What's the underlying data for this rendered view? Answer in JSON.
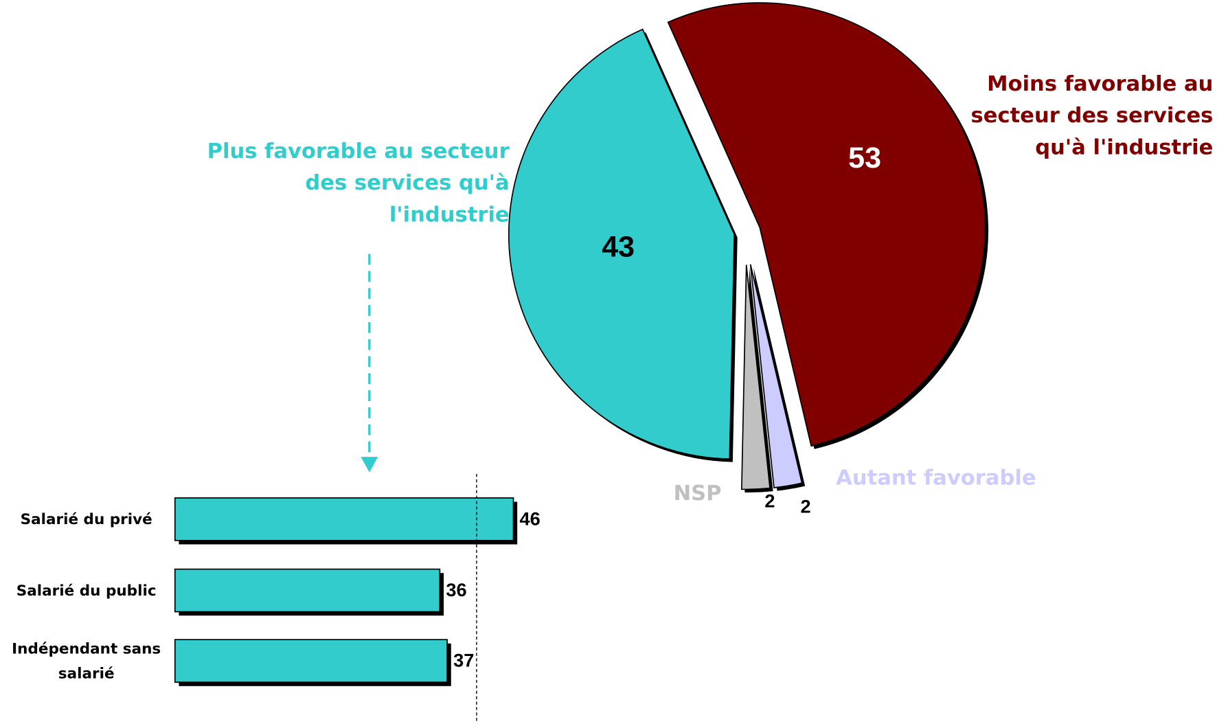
{
  "chart_data": [
    {
      "type": "pie",
      "categories": [
        "Moins favorable au secteur des services qu'à l'industrie",
        "Autant favorable",
        "NSP",
        "Plus favorable au secteur des services qu'à l'industrie"
      ],
      "values": [
        53,
        2,
        2,
        43
      ],
      "colors": [
        "#800000",
        "#ccccff",
        "#c0c0c0",
        "#33cccc"
      ],
      "label_colors": [
        "#800000",
        "#ccccff",
        "#c0c0c0",
        "#33cccc"
      ]
    },
    {
      "type": "bar",
      "orientation": "horizontal",
      "categories": [
        "Salarié du privé",
        "Salarié du public",
        "Indépendant sans salarié"
      ],
      "values": [
        46,
        36,
        37
      ],
      "color": "#33cccc",
      "xlim": [
        0,
        50
      ],
      "reference_line": 41
    }
  ]
}
